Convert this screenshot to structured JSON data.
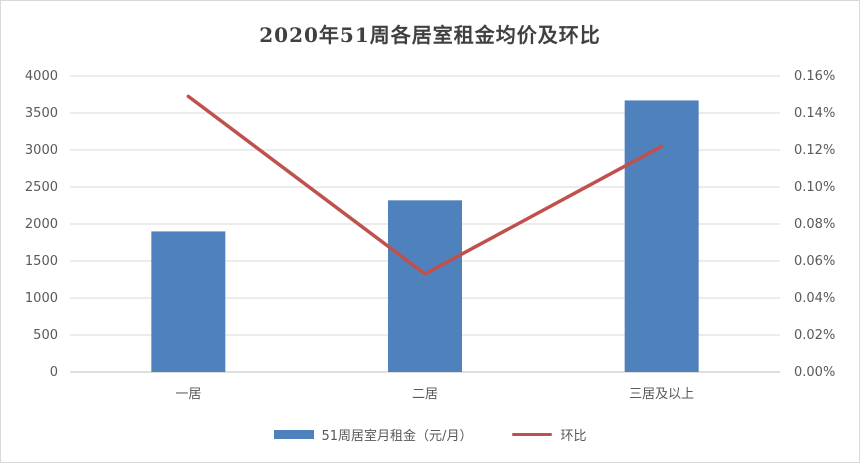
{
  "chart_data": {
    "type": "bar",
    "title": "2020年51周各居室租金均价及环比",
    "categories": [
      "一居",
      "二居",
      "三居及以上"
    ],
    "series": [
      {
        "name": "51周居室月租金（元/月）",
        "type": "bar",
        "axis": "left",
        "values": [
          1900,
          2320,
          3670
        ],
        "color": "#4f81bd"
      },
      {
        "name": "环比",
        "type": "line",
        "axis": "right",
        "values": [
          0.149,
          0.053,
          0.122
        ],
        "color": "#c0504d"
      }
    ],
    "y_left": {
      "lim": [
        0,
        4000
      ],
      "ticks": [
        "0",
        "500",
        "1000",
        "1500",
        "2000",
        "2500",
        "3000",
        "3500",
        "4000"
      ]
    },
    "y_right": {
      "lim": [
        0,
        0.16
      ],
      "ticks": [
        "0.00%",
        "0.02%",
        "0.04%",
        "0.06%",
        "0.08%",
        "0.10%",
        "0.12%",
        "0.14%",
        "0.16%"
      ]
    },
    "grid": true,
    "legend_position": "bottom"
  }
}
